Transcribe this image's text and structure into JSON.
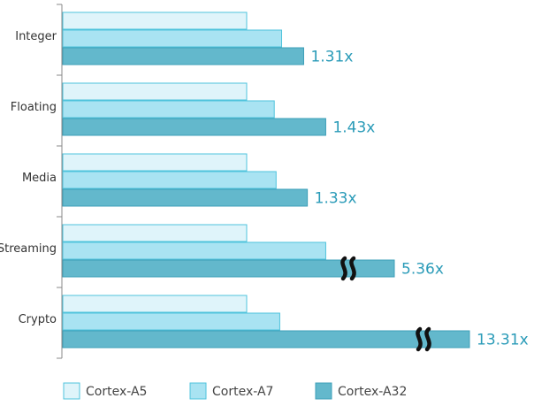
{
  "chart_data": {
    "type": "bar",
    "orientation": "horizontal",
    "categories": [
      "Integer",
      "Floating",
      "Media",
      "Streaming",
      "Crypto"
    ],
    "series": [
      {
        "name": "Cortex-A5",
        "values": [
          1.0,
          1.0,
          1.0,
          1.0,
          1.0
        ],
        "color": "#dff4fa",
        "stroke": "#4fc3dc"
      },
      {
        "name": "Cortex-A7",
        "values": [
          1.19,
          1.15,
          1.16,
          1.43,
          1.18
        ],
        "color": "#a9e3f2",
        "stroke": "#4fc3dc"
      },
      {
        "name": "Cortex-A32",
        "values": [
          1.31,
          1.43,
          1.33,
          5.36,
          13.31
        ],
        "color": "#63b8cc",
        "stroke": "#3d9fb8"
      }
    ],
    "data_labels": [
      "1.31x",
      "1.43x",
      "1.33x",
      "5.36x",
      "13.31x"
    ],
    "axis_breaks": [
      "Streaming",
      "Crypto"
    ],
    "legend_position": "bottom",
    "label_color": "#2a9bb8",
    "grid": false
  }
}
